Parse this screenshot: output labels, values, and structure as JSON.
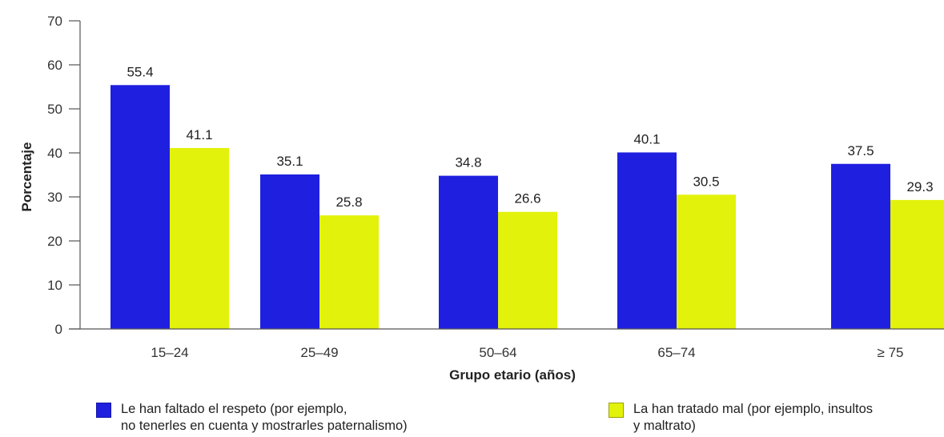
{
  "chart_data": {
    "type": "bar",
    "title": "",
    "xlabel": "Grupo etario (años)",
    "ylabel": "Porcentaje",
    "ylim": [
      0,
      70
    ],
    "yticks": [
      0,
      10,
      20,
      30,
      40,
      50,
      60,
      70
    ],
    "grid": false,
    "legend_position": "bottom",
    "categories": [
      "15–24",
      "25–49",
      "50–64",
      "65–74",
      "≥ 75"
    ],
    "series": [
      {
        "name": "Le han faltado el respeto (por ejemplo,\nno tenerles en cuenta y mostrarles paternalismo)",
        "color": "#1f1fe0",
        "values": [
          55.4,
          35.1,
          34.8,
          40.1,
          37.5
        ],
        "labels": [
          "55.4",
          "35.1",
          "34.8",
          "40.1",
          "37.5"
        ]
      },
      {
        "name": "La han tratado mal (por ejemplo, insultos\ny maltrato)",
        "color": "#e2f20a",
        "values": [
          41.1,
          25.8,
          26.6,
          30.5,
          29.3
        ],
        "labels": [
          "41.1",
          "25.8",
          "26.6",
          "30.5",
          "29.3"
        ]
      }
    ]
  }
}
